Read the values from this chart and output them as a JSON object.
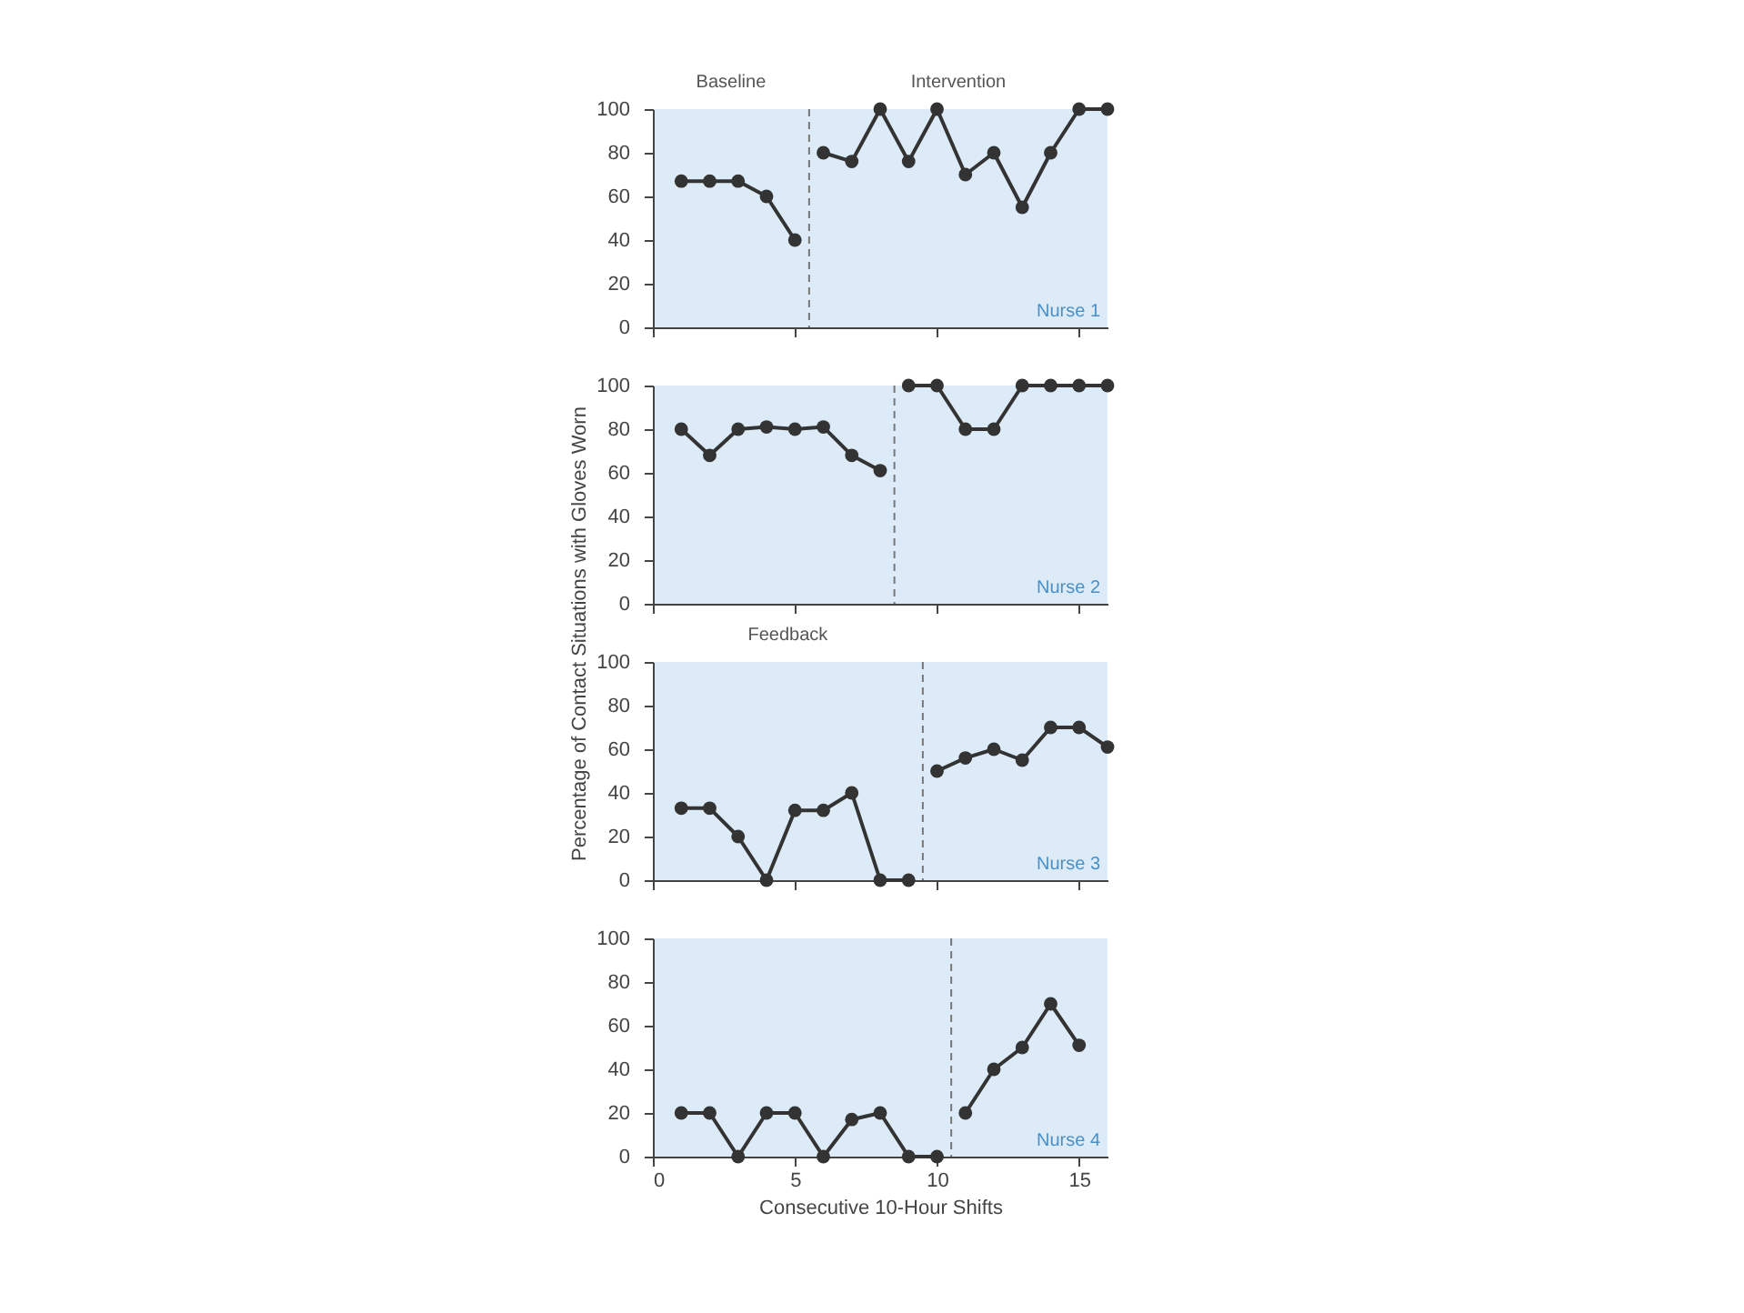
{
  "chart_data": [
    {
      "type": "line",
      "annotations": [
        "Baseline",
        "Intervention",
        "Nurse 1"
      ],
      "xlim": [
        0,
        16
      ],
      "xticks": [
        0,
        5,
        10,
        15
      ],
      "ylim": [
        0,
        100
      ],
      "yticks": [
        0,
        20,
        40,
        60,
        80,
        100
      ],
      "tick_labels": "y",
      "marker": "circle",
      "grid": false,
      "ref_lines": [
        {
          "axis": "x",
          "value": 5.5,
          "color": "#777777",
          "line_style": "dashed"
        }
      ],
      "series": [
        {
          "color": "#333333",
          "x": [
            1,
            2,
            3,
            4,
            5
          ],
          "values": [
            67,
            67,
            67,
            60,
            40
          ]
        },
        {
          "color": "#333333",
          "x": [
            6,
            7,
            8,
            9,
            10,
            11,
            12,
            13,
            14,
            15,
            16
          ],
          "values": [
            80,
            76,
            100,
            76,
            100,
            70,
            80,
            55,
            80,
            100,
            100
          ]
        }
      ]
    },
    {
      "type": "line",
      "ylabel": "Percentage of Contact Situations with Gloves Worn",
      "annotations": [
        "Nurse 2"
      ],
      "xlim": [
        0,
        16
      ],
      "xticks": [
        0,
        5,
        10,
        15
      ],
      "ylim": [
        0,
        100
      ],
      "yticks": [
        0,
        20,
        40,
        60,
        80,
        100
      ],
      "tick_labels": "y",
      "marker": "circle",
      "grid": false,
      "ref_lines": [
        {
          "axis": "x",
          "value": 8.5,
          "color": "#777777",
          "line_style": "dashed"
        }
      ],
      "series": [
        {
          "color": "#333333",
          "x": [
            1,
            2,
            3,
            4,
            5,
            6,
            7,
            8
          ],
          "values": [
            80,
            68,
            80,
            81,
            80,
            81,
            68,
            61
          ]
        },
        {
          "color": "#333333",
          "x": [
            9,
            10,
            11,
            12,
            13,
            14,
            15,
            16
          ],
          "values": [
            100,
            100,
            80,
            80,
            100,
            100,
            100,
            100
          ]
        }
      ]
    },
    {
      "type": "line",
      "annotations": [
        "Feedback",
        "Nurse 3"
      ],
      "xlim": [
        0,
        16
      ],
      "xticks": [
        0,
        5,
        10,
        15
      ],
      "ylim": [
        0,
        100
      ],
      "yticks": [
        0,
        20,
        40,
        60,
        80,
        100
      ],
      "tick_labels": "y",
      "marker": "circle",
      "grid": false,
      "ref_lines": [
        {
          "axis": "x",
          "value": 9.5,
          "color": "#777777",
          "line_style": "dashed"
        }
      ],
      "series": [
        {
          "color": "#333333",
          "x": [
            1,
            2,
            3,
            4,
            5,
            6,
            7,
            8,
            9
          ],
          "values": [
            33,
            33,
            20,
            0,
            32,
            32,
            40,
            0,
            0
          ]
        },
        {
          "color": "#333333",
          "x": [
            10,
            11,
            12,
            13,
            14,
            15,
            16
          ],
          "values": [
            50,
            56,
            60,
            55,
            70,
            70,
            61
          ]
        }
      ]
    },
    {
      "type": "line",
      "xlabel": "Consecutive 10-Hour Shifts",
      "annotations": [
        "Nurse 4"
      ],
      "xlim": [
        0,
        16
      ],
      "xticks": [
        0,
        5,
        10,
        15
      ],
      "ylim": [
        0,
        100
      ],
      "yticks": [
        0,
        20,
        40,
        60,
        80,
        100
      ],
      "marker": "circle",
      "grid": false,
      "ref_lines": [
        {
          "axis": "x",
          "value": 10.5,
          "color": "#777777",
          "line_style": "dashed"
        }
      ],
      "series": [
        {
          "color": "#333333",
          "x": [
            1,
            2,
            3,
            4,
            5,
            6,
            7,
            8,
            9,
            10
          ],
          "values": [
            20,
            20,
            0,
            20,
            20,
            0,
            17,
            20,
            0,
            0
          ]
        },
        {
          "color": "#333333",
          "x": [
            11,
            12,
            13,
            14,
            15
          ],
          "values": [
            20,
            40,
            50,
            70,
            51
          ]
        }
      ]
    }
  ]
}
